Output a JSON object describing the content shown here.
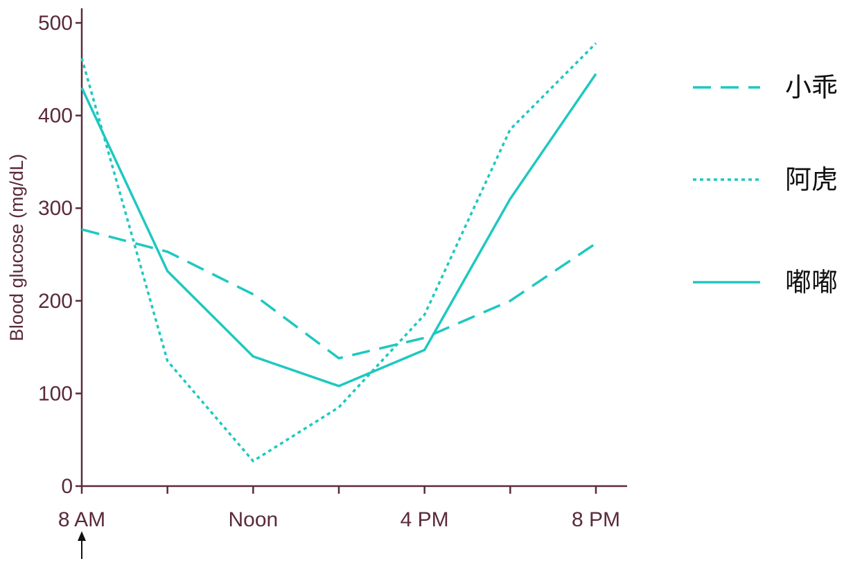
{
  "chart_data": {
    "type": "line",
    "ylabel": "Blood glucose (mg/dL)",
    "xlabel": "",
    "ylim": [
      0,
      500
    ],
    "yticks": [
      0,
      100,
      200,
      300,
      400,
      500
    ],
    "xlim": [
      8,
      20
    ],
    "x": [
      8,
      10,
      12,
      14,
      16,
      18,
      20
    ],
    "xtick_positions": [
      8,
      10,
      12,
      14,
      16,
      18,
      20
    ],
    "xtick_labels": [
      "8 AM",
      "",
      "Noon",
      "",
      "4 PM",
      "",
      "8 PM"
    ],
    "start_marker": "up-arrow below 8 AM",
    "series": [
      {
        "name": "小乖",
        "style": "dashed",
        "values": [
          277,
          253,
          207,
          138,
          160,
          200,
          262
        ]
      },
      {
        "name": "阿虎",
        "style": "dotted",
        "values": [
          462,
          135,
          27,
          85,
          185,
          385,
          478
        ]
      },
      {
        "name": "嘟嘟",
        "style": "solid",
        "values": [
          430,
          232,
          140,
          108,
          147,
          310,
          445
        ]
      }
    ],
    "legend_position": "right",
    "grid": false,
    "colors": {
      "series": "#1ec8c0",
      "axis": "#5a2a3c",
      "legend_text": "#111111"
    }
  }
}
